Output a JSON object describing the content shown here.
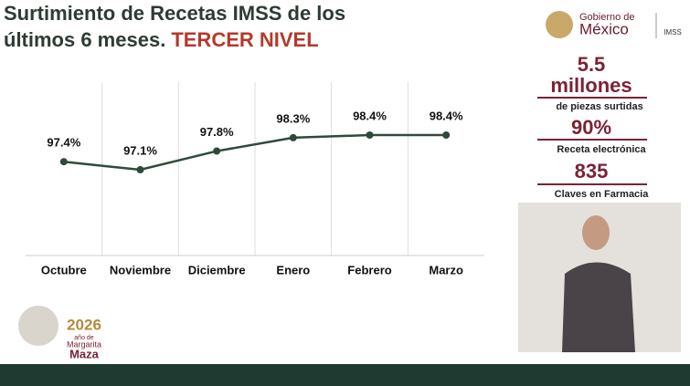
{
  "chart_data": {
    "type": "line",
    "title": "Surtimiento de Recetas IMSS de los",
    "subtitle": "últimos 6 meses.",
    "highlight": "TERCER NIVEL",
    "categories": [
      "Octubre",
      "Noviembre",
      "Diciembre",
      "Enero",
      "Febrero",
      "Marzo"
    ],
    "values": [
      97.4,
      97.1,
      97.8,
      98.3,
      98.4,
      98.4
    ],
    "value_labels": [
      "97.4%",
      "97.1%",
      "97.8%",
      "98.3%",
      "98.4%",
      "98.4%"
    ],
    "color": "#2f4a3a"
  },
  "stats": [
    {
      "value": "5.5",
      "unit": "millones",
      "label": "de piezas surtidas"
    },
    {
      "value": "90%",
      "label": "Receta electrónica"
    },
    {
      "value": "835",
      "label": "Claves en Farmacia"
    }
  ],
  "logo": {
    "line1": "Gobierno de",
    "line2": "México",
    "imss": "IMSS"
  },
  "year_badge": {
    "year": "2026",
    "line1": "año de",
    "line2": "Margarita",
    "line3": "Maza"
  }
}
